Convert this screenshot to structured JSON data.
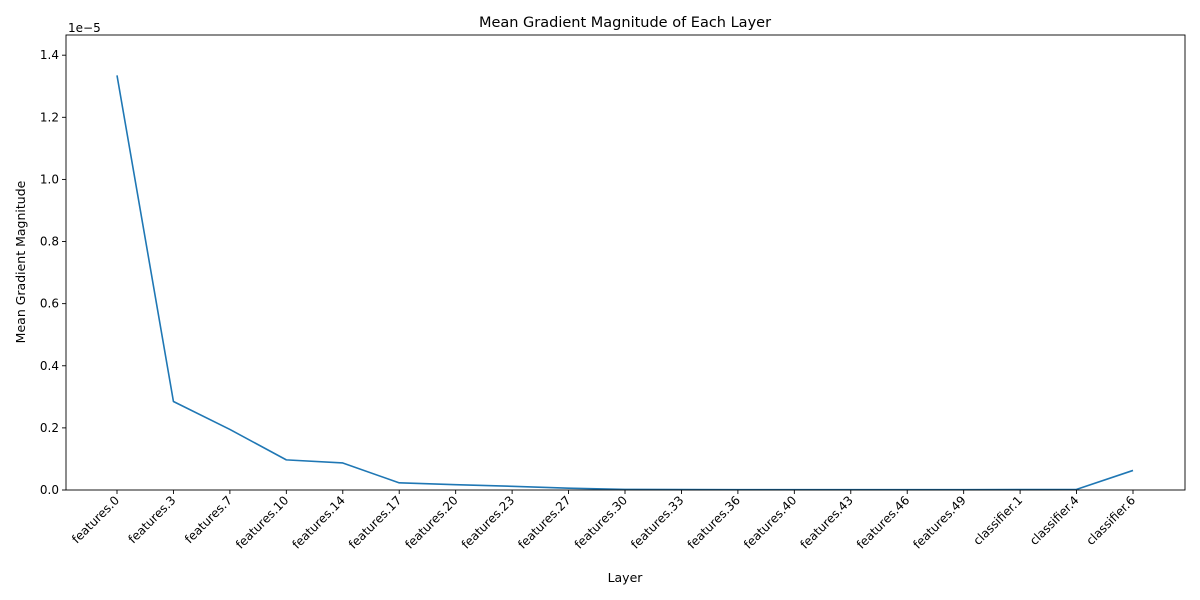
{
  "chart_data": {
    "type": "line",
    "title": "Mean Gradient Magnitude of Each Layer",
    "xlabel": "Layer",
    "ylabel": "Mean Gradient Magnitude",
    "y_offset_text": "1e−5",
    "categories": [
      "features.0",
      "features.3",
      "features.7",
      "features.10",
      "features.14",
      "features.17",
      "features.20",
      "features.23",
      "features.27",
      "features.30",
      "features.33",
      "features.36",
      "features.40",
      "features.43",
      "features.46",
      "features.49",
      "classifier.1",
      "classifier.4",
      "classifier.6"
    ],
    "y_ticks": [
      0.0,
      0.2,
      0.4,
      0.6,
      0.8,
      1.0,
      1.2,
      1.4
    ],
    "y_tick_labels": [
      "0.0",
      "0.2",
      "0.4",
      "0.6",
      "0.8",
      "1.0",
      "1.2",
      "1.4"
    ],
    "ylim": [
      0,
      1.465e-05
    ],
    "series": [
      {
        "color": "#1f77b4",
        "values": [
          1.335e-05,
          2.85e-06,
          1.95e-06,
          9.7e-07,
          8.7e-07,
          2.3e-07,
          1.7e-07,
          1.2e-07,
          6e-08,
          2e-08,
          1.5e-08,
          1e-08,
          1e-08,
          1e-08,
          1e-08,
          1e-08,
          1.5e-08,
          2e-08,
          6.3e-07
        ]
      }
    ],
    "grid": false,
    "legend": "none"
  }
}
